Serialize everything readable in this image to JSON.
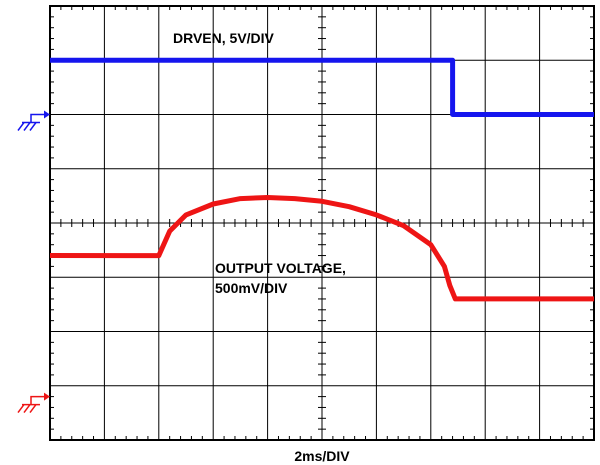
{
  "chart_data": {
    "type": "line",
    "title": "",
    "xlabel": "2ms/DIV",
    "grid": true,
    "divisions": {
      "x": 10,
      "y": 8
    },
    "series": [
      {
        "label": "DRVEN, 5V/DIV",
        "color": "#1515ee",
        "ground_marker_div": 6.0,
        "points": [
          [
            0.0,
            7.0
          ],
          [
            7.4,
            7.0
          ],
          [
            7.4,
            6.0
          ],
          [
            10.0,
            6.0
          ]
        ]
      },
      {
        "label": "OUTPUT VOLTAGE,",
        "label_line2": "500mV/DIV",
        "color": "#ee1515",
        "ground_marker_div": 0.8,
        "points": [
          [
            0.0,
            3.4
          ],
          [
            2.0,
            3.4
          ],
          [
            2.2,
            3.85
          ],
          [
            2.5,
            4.15
          ],
          [
            3.0,
            4.35
          ],
          [
            3.5,
            4.45
          ],
          [
            4.0,
            4.47
          ],
          [
            4.5,
            4.45
          ],
          [
            5.0,
            4.4
          ],
          [
            5.5,
            4.3
          ],
          [
            6.0,
            4.15
          ],
          [
            6.5,
            3.95
          ],
          [
            7.0,
            3.6
          ],
          [
            7.25,
            3.2
          ],
          [
            7.35,
            2.85
          ],
          [
            7.45,
            2.6
          ],
          [
            10.0,
            2.6
          ]
        ]
      }
    ]
  }
}
